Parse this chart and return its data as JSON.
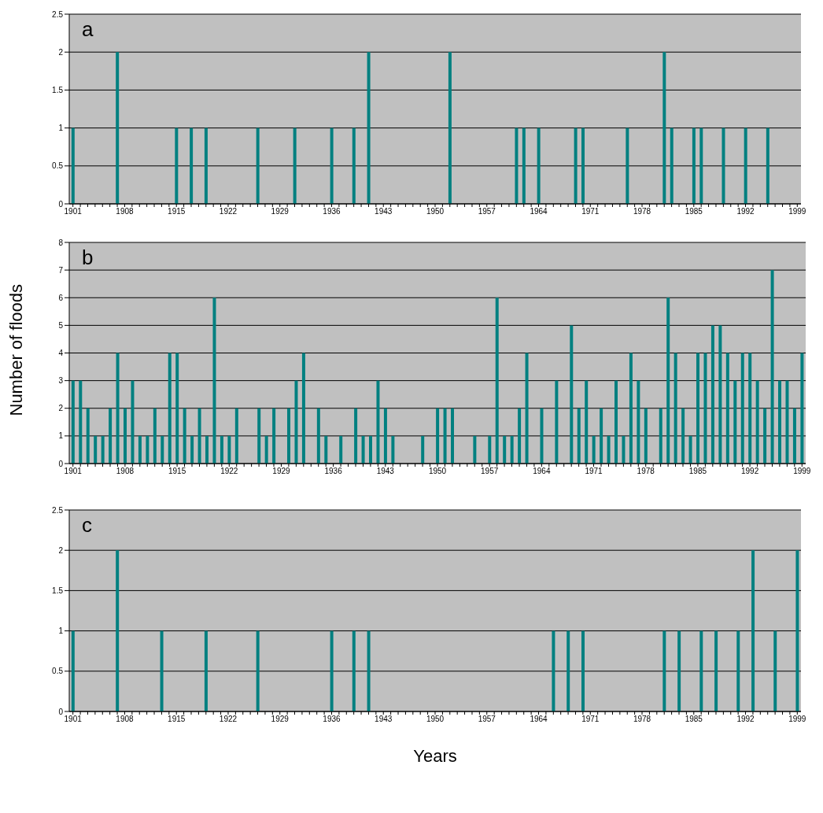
{
  "chart_data": [
    {
      "type": "bar",
      "annotations": [
        "a"
      ],
      "categories": [
        "1901",
        null,
        null,
        null,
        null,
        null,
        null,
        "1908",
        null,
        null,
        null,
        null,
        null,
        null,
        "1915",
        null,
        null,
        null,
        null,
        null,
        null,
        "1922",
        null,
        null,
        null,
        null,
        null,
        null,
        "1929",
        null,
        null,
        null,
        null,
        null,
        null,
        "1936",
        null,
        null,
        null,
        null,
        null,
        null,
        "1943",
        null,
        null,
        null,
        null,
        null,
        null,
        "1950",
        null,
        null,
        null,
        null,
        null,
        null,
        "1957",
        null,
        null,
        null,
        null,
        null,
        null,
        "1964",
        null,
        null,
        null,
        null,
        null,
        null,
        "1971",
        null,
        null,
        null,
        null,
        null,
        null,
        "1978",
        null,
        null,
        null,
        null,
        null,
        null,
        "1985",
        null,
        null,
        null,
        null,
        null,
        null,
        "1992",
        null,
        null,
        null,
        null,
        null,
        null,
        "1999"
      ],
      "values": [
        1,
        0,
        0,
        0,
        0,
        0,
        2,
        0,
        0,
        0,
        0,
        0,
        0,
        0,
        1,
        0,
        1,
        0,
        1,
        0,
        0,
        0,
        0,
        0,
        0,
        1,
        0,
        0,
        0,
        0,
        1,
        0,
        0,
        0,
        0,
        1,
        0,
        0,
        1,
        0,
        2,
        0,
        0,
        0,
        0,
        0,
        0,
        0,
        0,
        0,
        0,
        2,
        0,
        0,
        0,
        0,
        0,
        0,
        0,
        0,
        1,
        1,
        0,
        1,
        0,
        0,
        0,
        0,
        1,
        1,
        0,
        0,
        0,
        0,
        0,
        1,
        0,
        0,
        0,
        0,
        2,
        1,
        0,
        0,
        1,
        1,
        0,
        0,
        1,
        0,
        0,
        1,
        0,
        0,
        1,
        0,
        0,
        0,
        0
      ],
      "color": "#008080",
      "ylim": [
        0,
        2.5
      ],
      "yticks": [
        0,
        0.5,
        1,
        1.5,
        2,
        2.5
      ],
      "grid": "y"
    },
    {
      "type": "bar",
      "annotations": [
        "b"
      ],
      "ylabel": "Number of floods",
      "categories": [
        "1901",
        null,
        null,
        null,
        null,
        null,
        null,
        "1908",
        null,
        null,
        null,
        null,
        null,
        null,
        "1915",
        null,
        null,
        null,
        null,
        null,
        null,
        "1922",
        null,
        null,
        null,
        null,
        null,
        null,
        "1929",
        null,
        null,
        null,
        null,
        null,
        null,
        "1936",
        null,
        null,
        null,
        null,
        null,
        null,
        "1943",
        null,
        null,
        null,
        null,
        null,
        null,
        "1950",
        null,
        null,
        null,
        null,
        null,
        null,
        "1957",
        null,
        null,
        null,
        null,
        null,
        null,
        "1964",
        null,
        null,
        null,
        null,
        null,
        null,
        "1971",
        null,
        null,
        null,
        null,
        null,
        null,
        "1978",
        null,
        null,
        null,
        null,
        null,
        null,
        "1985",
        null,
        null,
        null,
        null,
        null,
        null,
        "1992",
        null,
        null,
        null,
        null,
        null,
        null,
        "1999"
      ],
      "values": [
        3,
        3,
        2,
        1,
        1,
        2,
        4,
        2,
        3,
        1,
        1,
        2,
        1,
        4,
        4,
        2,
        1,
        2,
        1,
        6,
        1,
        1,
        2,
        0,
        0,
        2,
        1,
        2,
        0,
        2,
        3,
        4,
        0,
        2,
        1,
        0,
        1,
        0,
        2,
        1,
        1,
        3,
        2,
        1,
        0,
        0,
        0,
        1,
        0,
        2,
        2,
        2,
        0,
        0,
        1,
        0,
        1,
        6,
        1,
        1,
        2,
        4,
        0,
        2,
        0,
        3,
        0,
        5,
        2,
        3,
        1,
        2,
        1,
        3,
        1,
        4,
        3,
        2,
        0,
        2,
        6,
        4,
        2,
        1,
        4,
        4,
        5,
        5,
        4,
        3,
        4,
        4,
        3,
        2,
        7,
        3,
        3,
        2,
        4
      ],
      "color": "#008080",
      "ylim": [
        0,
        8
      ],
      "yticks": [
        0,
        1,
        2,
        3,
        4,
        5,
        6,
        7,
        8
      ],
      "grid": "y"
    },
    {
      "type": "bar",
      "annotations": [
        "c"
      ],
      "xlabel": "Years",
      "categories": [
        "1901",
        null,
        null,
        null,
        null,
        null,
        null,
        "1908",
        null,
        null,
        null,
        null,
        null,
        null,
        "1915",
        null,
        null,
        null,
        null,
        null,
        null,
        "1922",
        null,
        null,
        null,
        null,
        null,
        null,
        "1929",
        null,
        null,
        null,
        null,
        null,
        null,
        "1936",
        null,
        null,
        null,
        null,
        null,
        null,
        "1943",
        null,
        null,
        null,
        null,
        null,
        null,
        "1950",
        null,
        null,
        null,
        null,
        null,
        null,
        "1957",
        null,
        null,
        null,
        null,
        null,
        null,
        "1964",
        null,
        null,
        null,
        null,
        null,
        null,
        "1971",
        null,
        null,
        null,
        null,
        null,
        null,
        "1978",
        null,
        null,
        null,
        null,
        null,
        null,
        "1985",
        null,
        null,
        null,
        null,
        null,
        null,
        "1992",
        null,
        null,
        null,
        null,
        null,
        null,
        "1999"
      ],
      "values": [
        1,
        0,
        0,
        0,
        0,
        0,
        2,
        0,
        0,
        0,
        0,
        0,
        1,
        0,
        0,
        0,
        0,
        0,
        1,
        0,
        0,
        0,
        0,
        0,
        0,
        1,
        0,
        0,
        0,
        0,
        0,
        0,
        0,
        0,
        0,
        1,
        0,
        0,
        1,
        0,
        1,
        0,
        0,
        0,
        0,
        0,
        0,
        0,
        0,
        0,
        0,
        0,
        0,
        0,
        0,
        0,
        0,
        0,
        0,
        0,
        0,
        0,
        0,
        0,
        0,
        1,
        0,
        1,
        0,
        1,
        0,
        0,
        0,
        0,
        0,
        0,
        0,
        0,
        0,
        0,
        1,
        0,
        1,
        0,
        0,
        1,
        0,
        1,
        0,
        0,
        1,
        0,
        2,
        0,
        0,
        1,
        0,
        0,
        2
      ],
      "color": "#008080",
      "ylim": [
        0,
        2.5
      ],
      "yticks": [
        0,
        0.5,
        1,
        1.5,
        2,
        2.5
      ],
      "grid": "y"
    }
  ]
}
